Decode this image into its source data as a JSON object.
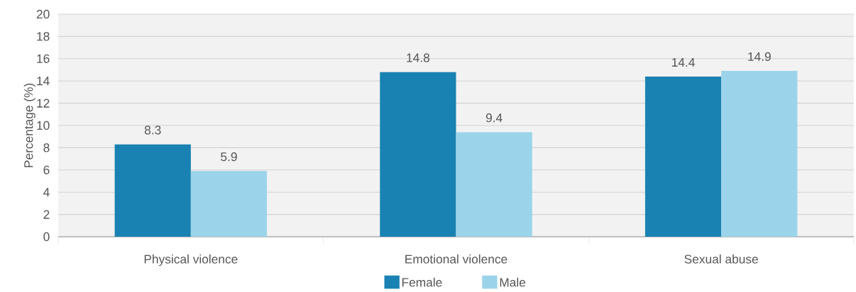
{
  "chart_data": {
    "type": "bar",
    "ylabel": "Percentage (%)",
    "categories": [
      "Physical violence",
      "Emotional violence",
      "Sexual abuse"
    ],
    "series": [
      {
        "name": "Female",
        "color": "#1a82b2",
        "values": [
          8.3,
          14.8,
          14.4
        ]
      },
      {
        "name": "Male",
        "color": "#9bd4ea",
        "values": [
          5.9,
          9.4,
          14.9
        ]
      }
    ],
    "ylim": [
      0,
      20
    ],
    "yticks": [
      0,
      2,
      4,
      6,
      8,
      10,
      12,
      14,
      16,
      18,
      20
    ],
    "grid": "y",
    "legend": "bottom",
    "data_labels": true
  }
}
